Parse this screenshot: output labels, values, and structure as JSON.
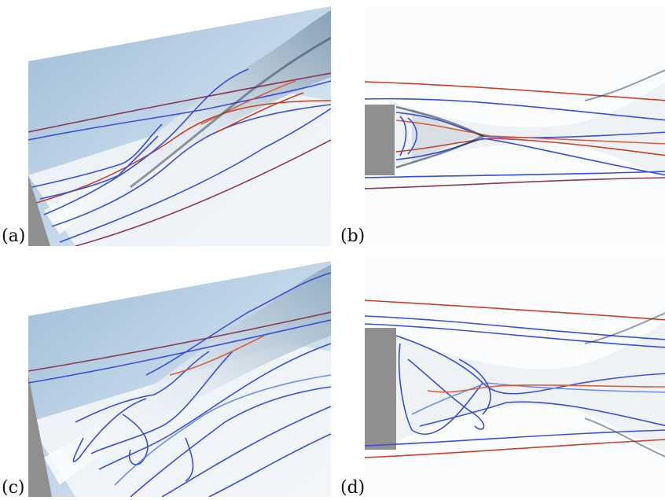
{
  "panels": [
    {
      "id": "a",
      "label": "(a)",
      "view": "perspective"
    },
    {
      "id": "b",
      "label": "(b)",
      "view": "top"
    },
    {
      "id": "c",
      "label": "(c)",
      "view": "perspective"
    },
    {
      "id": "d",
      "label": "(d)",
      "view": "top"
    }
  ],
  "colors": {
    "streamline_blue": "#3a4fd8",
    "streamline_red": "#c8402a",
    "surface_light_blue": "#b8d1e6",
    "surface_white": "#f4f6f8",
    "body_gray": "#9a9a9a"
  }
}
